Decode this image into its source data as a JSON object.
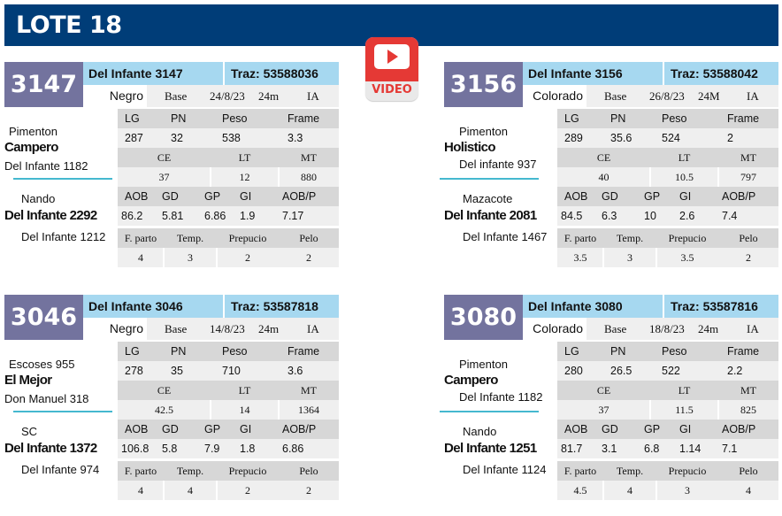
{
  "header": {
    "title": "LOTE 18"
  },
  "video_button": {
    "label": "VIDEO",
    "color": "#e53935"
  },
  "colors": {
    "header_bg": "#003d78",
    "id_box_bg": "#73739e",
    "name_bar_bg": "#a6d8f0",
    "divider": "#45b8cf"
  },
  "labels": {
    "row1": [
      "LG",
      "PN",
      "Peso",
      "Frame"
    ],
    "row2": [
      "CE",
      "LT",
      "MT"
    ],
    "row3": [
      "AOB",
      "GD",
      "GP",
      "GI",
      "AOB/P"
    ],
    "row4": [
      "F. parto",
      "Temp.",
      "Prepucio",
      "Pelo"
    ]
  },
  "cards": [
    {
      "id": "3147",
      "name": "Del Infante 3147",
      "traz": "Traz: 53588036",
      "color": "Negro",
      "base": "Base",
      "date": "24/8/23",
      "age": "24m",
      "ia": "IA",
      "sire_sire": "Pimenton",
      "sire": "Campero",
      "sire_dam": "Del Infante 1182",
      "dam_sire": "Nando",
      "dam": "Del Infante 2292",
      "dam_dam": "Del Infante 1212",
      "row1": [
        "287",
        "32",
        "538",
        "3.3"
      ],
      "row2": [
        "37",
        "12",
        "880"
      ],
      "row3": [
        "86.2",
        "5.81",
        "6.86",
        "1.9",
        "7.17"
      ],
      "row4": [
        "4",
        "3",
        "2",
        "2"
      ]
    },
    {
      "id": "3156",
      "name": "Del Infante 3156",
      "traz": "Traz: 53588042",
      "color": "Colorado",
      "base": "Base",
      "date": "26/8/23",
      "age": "24M",
      "ia": "IA",
      "sire_sire": "Pimenton",
      "sire": "Holistico",
      "sire_dam": "Del infante 937",
      "dam_sire": "Mazacote",
      "dam": "Del Infante 2081",
      "dam_dam": "Del Infante 1467",
      "row1": [
        "289",
        "35.6",
        "524",
        "2"
      ],
      "row2": [
        "40",
        "10.5",
        "797"
      ],
      "row3": [
        "84.5",
        "6.3",
        "10",
        "2.6",
        "7.4"
      ],
      "row4": [
        "3.5",
        "3",
        "3.5",
        "2"
      ]
    },
    {
      "id": "3046",
      "name": "Del Infante 3046",
      "traz": "Traz: 53587818",
      "color": "Negro",
      "base": "Base",
      "date": "14/8/23",
      "age": "24m",
      "ia": "IA",
      "sire_sire": "Escoses 955",
      "sire": "El Mejor",
      "sire_dam": "Don Manuel 318",
      "dam_sire": "SC",
      "dam": "Del Infante 1372",
      "dam_dam": "Del Infante 974",
      "row1": [
        "278",
        "35",
        "710",
        "3.6"
      ],
      "row2": [
        "42.5",
        "14",
        "1364"
      ],
      "row3": [
        "106.8",
        "5.8",
        "7.9",
        "1.8",
        "6.86"
      ],
      "row4": [
        "4",
        "4",
        "2",
        "2"
      ]
    },
    {
      "id": "3080",
      "name": "Del Infante 3080",
      "traz": "Traz: 53587816",
      "color": "Colorado",
      "base": "Base",
      "date": "18/8/23",
      "age": "24m",
      "ia": "IA",
      "sire_sire": "Pimenton",
      "sire": "Campero",
      "sire_dam": "Del Infante 1182",
      "dam_sire": "Nando",
      "dam": "Del Infante 1251",
      "dam_dam": "Del Infante 1124",
      "row1": [
        "280",
        "26.5",
        "522",
        "2.2"
      ],
      "row2": [
        "37",
        "11.5",
        "825"
      ],
      "row3": [
        "81.7",
        "3.1",
        "6.8",
        "1.14",
        "7.1"
      ],
      "row4": [
        "4.5",
        "4",
        "3",
        "4"
      ]
    }
  ]
}
